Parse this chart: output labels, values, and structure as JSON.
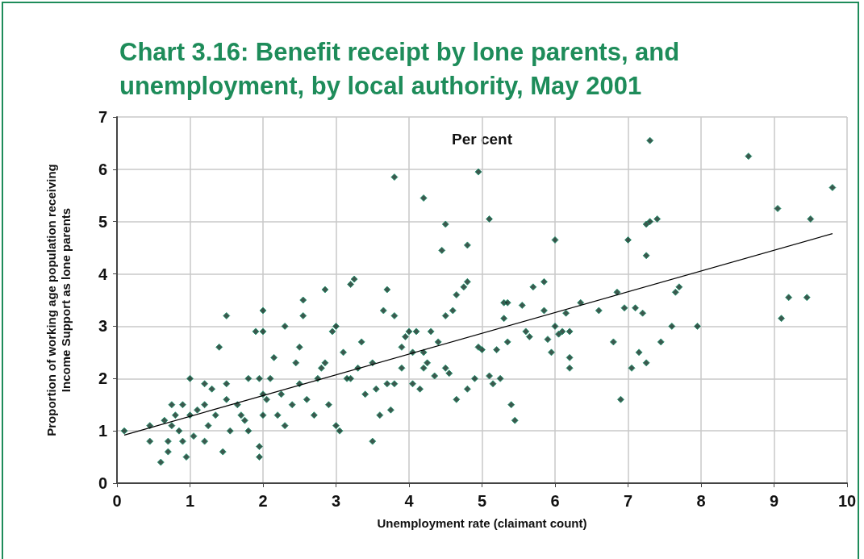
{
  "chart_data": {
    "type": "scatter",
    "title": "Chart 3.16: Benefit receipt by lone parents, and unemployment, by local authority, May 2001",
    "xlabel": "Unemployment rate (claimant count)",
    "ylabel": "Proportion of working age population receiving Income Support as lone parents",
    "annotations": [
      "Per cent"
    ],
    "xlim": [
      0,
      10
    ],
    "xticks": [
      0,
      1,
      2,
      3,
      4,
      5,
      6,
      7,
      8,
      9,
      10
    ],
    "ylim": [
      0,
      7
    ],
    "yticks": [
      0,
      1,
      2,
      3,
      4,
      5,
      6,
      7
    ],
    "grid": true,
    "marker": "diamond",
    "series": [
      {
        "color": "#0b2e22",
        "x": [
          7.3,
          8.65,
          9.8,
          9.05,
          9.5,
          7.25,
          7.3,
          7.4,
          7.25,
          7.0,
          6.0,
          5.1,
          4.95,
          3.8,
          4.2,
          4.5,
          4.45,
          4.8,
          9.2,
          9.45,
          9.1,
          7.7,
          7.65,
          7.45,
          7.6,
          7.95,
          6.9,
          6.85,
          6.95,
          7.1,
          7.2,
          7.05,
          7.15,
          7.25,
          6.8,
          6.6,
          6.35,
          6.15,
          6.2,
          6.2,
          6.1,
          6.2,
          6.0,
          6.05,
          5.95,
          5.9,
          5.85,
          5.7,
          5.85,
          5.45,
          5.4,
          5.6,
          5.65,
          5.55,
          5.3,
          5.35,
          5.3,
          5.25,
          5.35,
          5.2,
          5.15,
          5.1,
          5.0,
          4.95,
          4.9,
          4.8,
          4.75,
          4.65,
          4.6,
          4.5,
          4.5,
          4.55,
          4.65,
          4.8,
          4.35,
          4.4,
          4.2,
          4.2,
          4.15,
          4.05,
          4.0,
          3.95,
          3.9,
          3.8,
          3.7,
          3.65,
          3.75,
          3.8,
          3.7,
          3.6,
          3.5,
          3.55,
          3.5,
          3.35,
          3.3,
          3.25,
          3.2,
          3.1,
          3.05,
          3.0,
          3.0,
          2.95,
          2.85,
          2.8,
          2.7,
          2.75,
          2.55,
          2.5,
          2.45,
          2.4,
          2.3,
          2.25,
          2.2,
          2.15,
          2.0,
          2.0,
          1.95,
          1.9,
          2.0,
          2.05,
          1.95,
          1.95,
          2.0,
          1.8,
          1.7,
          1.5,
          1.5,
          1.4,
          1.35,
          1.5,
          1.45,
          1.3,
          1.2,
          1.1,
          1.0,
          1.0,
          0.9,
          0.85,
          0.75,
          0.7,
          0.65,
          0.7,
          0.6,
          0.75,
          0.45,
          0.45,
          0.1,
          1.2,
          0.95,
          1.05,
          1.25,
          1.55,
          1.65,
          1.75,
          2.3,
          2.6,
          2.9,
          3.2,
          3.4,
          4.1,
          4.3,
          4.25,
          3.9,
          4.05,
          1.8,
          2.1,
          1.2,
          0.8,
          0.9,
          2.85,
          2.5,
          2.55,
          3.15
        ],
        "values": [
          6.55,
          6.25,
          5.65,
          5.25,
          5.05,
          4.95,
          5.0,
          5.05,
          4.35,
          4.65,
          4.65,
          5.05,
          5.95,
          5.85,
          5.45,
          4.95,
          4.45,
          4.55,
          3.55,
          3.55,
          3.15,
          3.75,
          3.65,
          2.7,
          3.0,
          3.0,
          1.6,
          3.65,
          3.35,
          3.35,
          3.25,
          2.2,
          2.5,
          2.3,
          2.7,
          3.3,
          3.45,
          3.25,
          2.4,
          2.2,
          2.9,
          2.9,
          3.0,
          2.85,
          2.5,
          2.75,
          3.85,
          3.75,
          3.3,
          1.2,
          1.5,
          2.9,
          2.8,
          3.4,
          3.45,
          3.45,
          3.15,
          2.0,
          2.7,
          2.55,
          1.9,
          2.05,
          2.55,
          2.6,
          2.0,
          3.85,
          3.75,
          3.6,
          3.3,
          3.2,
          2.2,
          2.1,
          1.6,
          1.8,
          2.05,
          2.7,
          2.5,
          2.2,
          1.8,
          2.5,
          2.9,
          2.8,
          2.6,
          3.2,
          3.7,
          3.3,
          1.4,
          1.9,
          1.9,
          1.3,
          0.8,
          1.8,
          2.3,
          2.7,
          2.2,
          3.9,
          3.8,
          2.5,
          1.0,
          1.1,
          3.0,
          2.9,
          3.7,
          2.2,
          1.3,
          2.0,
          3.5,
          2.6,
          2.3,
          1.5,
          3.0,
          1.7,
          1.3,
          2.4,
          3.3,
          2.9,
          2.0,
          2.9,
          1.7,
          1.6,
          0.7,
          0.5,
          1.3,
          1.0,
          1.3,
          3.2,
          1.6,
          2.6,
          1.3,
          1.9,
          0.6,
          1.8,
          1.9,
          1.4,
          2.0,
          1.3,
          1.5,
          1.0,
          1.1,
          0.8,
          1.2,
          0.6,
          0.4,
          1.5,
          0.8,
          1.1,
          1.0,
          0.8,
          0.5,
          0.9,
          1.1,
          1.0,
          1.5,
          1.2,
          1.1,
          1.6,
          1.5,
          2.0,
          1.7,
          2.9,
          2.9,
          2.3,
          2.2,
          1.9,
          2.0,
          2.0,
          1.5,
          1.3,
          0.8,
          2.3,
          1.9,
          3.2,
          2.0
        ]
      },
      {
        "type": "line",
        "color": "#000000",
        "marker": "none",
        "line_style": "solid",
        "x": [
          0.1,
          9.8
        ],
        "values": [
          0.92,
          4.77
        ]
      }
    ]
  }
}
